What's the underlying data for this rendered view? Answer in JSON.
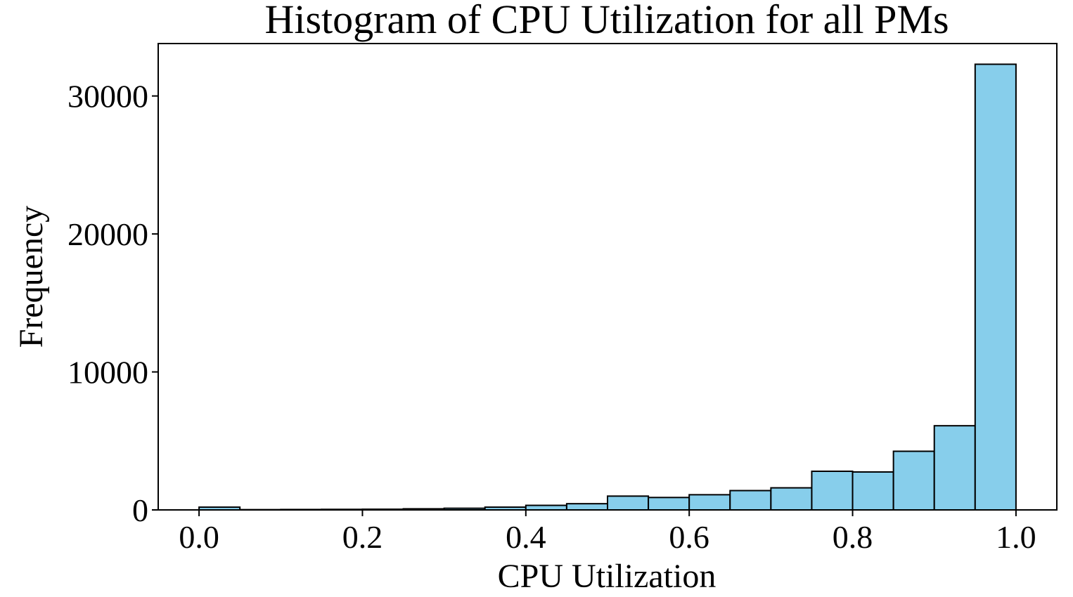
{
  "chart_data": {
    "type": "bar",
    "title": "Histogram of CPU Utilization for all PMs",
    "xlabel": "CPU Utilization",
    "ylabel": "Frequency",
    "xlim": [
      -0.05,
      1.05
    ],
    "ylim": [
      0,
      33800
    ],
    "xticks": [
      0.0,
      0.2,
      0.4,
      0.6,
      0.8,
      1.0
    ],
    "xtick_labels": [
      "0.0",
      "0.2",
      "0.4",
      "0.6",
      "0.8",
      "1.0"
    ],
    "yticks": [
      0,
      10000,
      20000,
      30000
    ],
    "ytick_labels": [
      "0",
      "10000",
      "20000",
      "30000"
    ],
    "bin_width": 0.05,
    "bin_starts": [
      0.0,
      0.05,
      0.1,
      0.15,
      0.2,
      0.25,
      0.3,
      0.35,
      0.4,
      0.45,
      0.5,
      0.55,
      0.6,
      0.65,
      0.7,
      0.75,
      0.8,
      0.85,
      0.9,
      0.95
    ],
    "values": [
      200,
      20,
      30,
      40,
      50,
      80,
      120,
      200,
      330,
      450,
      1000,
      900,
      1100,
      1400,
      1600,
      2800,
      2750,
      4250,
      6100,
      32300
    ],
    "bar_color": "#87CEEB",
    "edge_color": "#000000",
    "grid": false,
    "legend": false
  }
}
